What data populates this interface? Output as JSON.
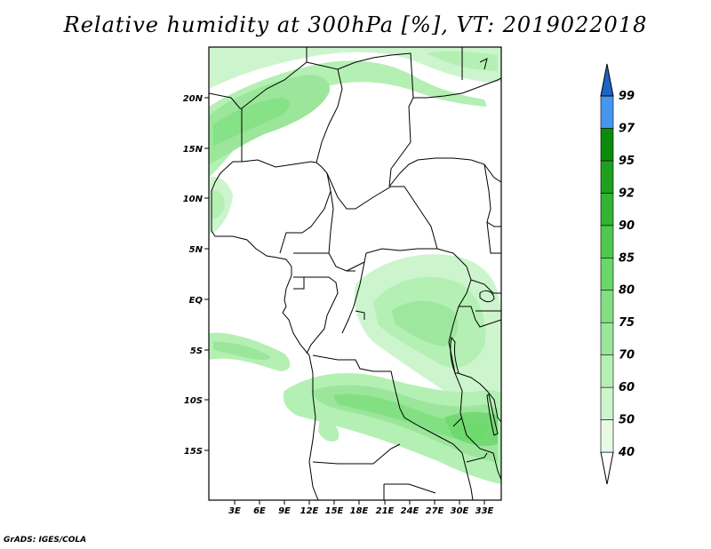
{
  "title": "Relative humidity at 300hPa [%], VT: 2019022018",
  "credit": "GrADS: IGES/COLA",
  "map": {
    "lat_labels": [
      "20N",
      "15N",
      "10N",
      "5N",
      "EQ",
      "5S",
      "10S",
      "15S"
    ],
    "lon_labels": [
      "3E",
      "6E",
      "9E",
      "12E",
      "15E",
      "18E",
      "21E",
      "24E",
      "27E",
      "30E",
      "33E"
    ]
  },
  "colorbar": {
    "levels": [
      "40",
      "50",
      "60",
      "70",
      "75",
      "80",
      "85",
      "90",
      "92",
      "95",
      "97",
      "99"
    ],
    "colors": [
      "#e6fae6",
      "#cdf5cd",
      "#b4f0b4",
      "#9be69b",
      "#82e082",
      "#69d769",
      "#50c850",
      "#32b432",
      "#1ea01e",
      "#0a8c0a",
      "#4696f0",
      "#2878e6",
      "#1e64c8"
    ]
  }
}
